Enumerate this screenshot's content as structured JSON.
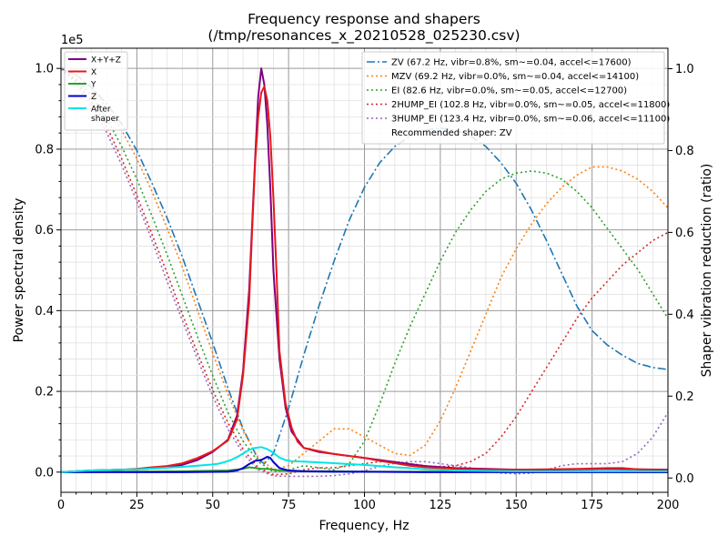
{
  "chart_data": {
    "type": "line",
    "title": "Frequency response and shapers",
    "subtitle": "(/tmp/resonances_x_20210528_025230.csv)",
    "xlabel": "Frequency, Hz",
    "ylabel": "Power spectral density",
    "y2label": "Shaper vibration reduction (ratio)",
    "y_exponent_label": "1e5",
    "xlim": [
      0,
      200
    ],
    "ylim": [
      -0.05,
      1.05
    ],
    "y2lim": [
      -0.035,
      1.05
    ],
    "xticks": [
      "0",
      "25",
      "50",
      "75",
      "100",
      "125",
      "150",
      "175",
      "200"
    ],
    "yticks": [
      "0.0",
      "0.2",
      "0.4",
      "0.6",
      "0.8",
      "1.0"
    ],
    "y2ticks": [
      "0.0",
      "0.2",
      "0.4",
      "0.6",
      "0.8",
      "1.0"
    ],
    "grid": true,
    "psd_legend_position": "top-left",
    "shaper_legend_position": "top-right",
    "recommended_text": "Recommended shaper: ZV",
    "psd_series": [
      {
        "name": "X+Y+Z",
        "color": "#800080",
        "x": [
          0,
          5,
          10,
          15,
          20,
          25,
          30,
          35,
          40,
          45,
          50,
          55,
          58,
          60,
          62,
          64,
          65,
          66,
          67,
          68,
          69,
          70,
          72,
          74,
          76,
          80,
          85,
          90,
          95,
          100,
          105,
          110,
          115,
          120,
          130,
          140,
          150,
          160,
          170,
          180,
          190,
          200
        ],
        "y": [
          0,
          0.002,
          0.004,
          0.005,
          0.006,
          0.007,
          0.009,
          0.012,
          0.018,
          0.03,
          0.05,
          0.08,
          0.14,
          0.25,
          0.45,
          0.78,
          0.93,
          1.0,
          0.96,
          0.86,
          0.7,
          0.5,
          0.28,
          0.16,
          0.1,
          0.06,
          0.05,
          0.045,
          0.04,
          0.035,
          0.03,
          0.025,
          0.02,
          0.015,
          0.01,
          0.008,
          0.006,
          0.006,
          0.007,
          0.008,
          0.007,
          0.006
        ]
      },
      {
        "name": "X",
        "color": "#e41a1c",
        "x": [
          0,
          5,
          10,
          15,
          20,
          25,
          30,
          35,
          40,
          45,
          50,
          55,
          58,
          60,
          62,
          63,
          64,
          65,
          66,
          67,
          68,
          69,
          70,
          71,
          72,
          74,
          76,
          78,
          80,
          85,
          90,
          95,
          100,
          105,
          110,
          115,
          120,
          130,
          140,
          150,
          160,
          170,
          180,
          185,
          190,
          195,
          200
        ],
        "y": [
          0,
          0.002,
          0.004,
          0.005,
          0.006,
          0.008,
          0.012,
          0.015,
          0.022,
          0.035,
          0.052,
          0.078,
          0.13,
          0.24,
          0.42,
          0.6,
          0.77,
          0.88,
          0.94,
          0.955,
          0.92,
          0.83,
          0.68,
          0.5,
          0.3,
          0.17,
          0.11,
          0.075,
          0.06,
          0.052,
          0.045,
          0.04,
          0.035,
          0.028,
          0.022,
          0.016,
          0.012,
          0.008,
          0.006,
          0.006,
          0.007,
          0.008,
          0.01,
          0.01,
          0.007,
          0.006,
          0.005
        ]
      },
      {
        "name": "Y",
        "color": "#2ca02c",
        "x": [
          0,
          20,
          40,
          55,
          60,
          62,
          64,
          66,
          68,
          70,
          72,
          75,
          80,
          85,
          90,
          100,
          120,
          150,
          200
        ],
        "y": [
          0,
          0.001,
          0.002,
          0.004,
          0.008,
          0.012,
          0.01,
          0.008,
          0.008,
          0.006,
          0.004,
          0.003,
          0.002,
          0.002,
          0.002,
          0.001,
          0.001,
          0.001,
          0
        ]
      },
      {
        "name": "Z",
        "color": "#0000cd",
        "x": [
          0,
          20,
          40,
          55,
          58,
          60,
          62,
          64,
          66,
          68,
          69,
          70,
          72,
          75,
          80,
          90,
          100,
          120,
          150,
          200
        ],
        "y": [
          0,
          0,
          0,
          0.001,
          0.004,
          0.01,
          0.02,
          0.028,
          0.03,
          0.038,
          0.035,
          0.025,
          0.01,
          0.004,
          0.002,
          0.001,
          0.001,
          0,
          0,
          0
        ]
      },
      {
        "name": "After\nshaper",
        "color": "#00e5e5",
        "x": [
          0,
          5,
          10,
          15,
          20,
          25,
          30,
          35,
          40,
          45,
          50,
          52,
          54,
          56,
          58,
          60,
          62,
          64,
          66,
          68,
          70,
          72,
          74,
          76,
          80,
          85,
          90,
          95,
          100,
          110,
          115,
          120,
          130,
          140,
          150,
          160,
          170,
          180,
          190,
          200
        ],
        "y": [
          0,
          0.002,
          0.004,
          0.005,
          0.006,
          0.007,
          0.009,
          0.011,
          0.013,
          0.016,
          0.019,
          0.021,
          0.025,
          0.03,
          0.037,
          0.046,
          0.055,
          0.06,
          0.062,
          0.057,
          0.048,
          0.036,
          0.03,
          0.027,
          0.026,
          0.024,
          0.022,
          0.02,
          0.018,
          0.012,
          0.01,
          0.007,
          0.004,
          0.003,
          0.002,
          0.002,
          0.002,
          0.002,
          0.002,
          0.002
        ]
      }
    ],
    "shaper_series": [
      {
        "name": "ZV (67.2 Hz, vibr=0.8%, sm~=0.04, accel<=17600)",
        "color": "#1f77b4",
        "dash": "dashdot",
        "x": [
          0,
          5,
          10,
          15,
          20,
          25,
          30,
          35,
          40,
          45,
          50,
          55,
          60,
          65,
          67,
          70,
          75,
          80,
          85,
          90,
          95,
          100,
          105,
          110,
          115,
          120,
          125,
          130,
          135,
          140,
          145,
          150,
          155,
          160,
          165,
          170,
          175,
          180,
          185,
          190,
          195,
          200
        ],
        "y": [
          1.0,
          0.985,
          0.955,
          0.915,
          0.865,
          0.8,
          0.72,
          0.635,
          0.54,
          0.435,
          0.33,
          0.22,
          0.12,
          0.045,
          0.035,
          0.06,
          0.17,
          0.3,
          0.42,
          0.53,
          0.63,
          0.71,
          0.77,
          0.81,
          0.835,
          0.85,
          0.855,
          0.85,
          0.835,
          0.81,
          0.77,
          0.72,
          0.655,
          0.58,
          0.5,
          0.42,
          0.36,
          0.325,
          0.3,
          0.28,
          0.27,
          0.265
        ]
      },
      {
        "name": "MZV (69.2 Hz, vibr=0.0%, sm~=0.04, accel<=14100)",
        "color": "#ff7f0e",
        "dash": "dotted",
        "x": [
          0,
          5,
          10,
          15,
          20,
          25,
          30,
          35,
          40,
          45,
          50,
          55,
          60,
          65,
          70,
          75,
          80,
          85,
          90,
          95,
          100,
          105,
          110,
          115,
          120,
          125,
          130,
          135,
          140,
          145,
          150,
          155,
          160,
          165,
          170,
          175,
          180,
          185,
          190,
          195,
          200
        ],
        "y": [
          1.0,
          0.985,
          0.95,
          0.905,
          0.85,
          0.78,
          0.7,
          0.61,
          0.515,
          0.41,
          0.305,
          0.205,
          0.115,
          0.05,
          0.02,
          0.03,
          0.06,
          0.09,
          0.12,
          0.12,
          0.1,
          0.08,
          0.06,
          0.055,
          0.08,
          0.14,
          0.22,
          0.31,
          0.4,
          0.49,
          0.56,
          0.62,
          0.67,
          0.71,
          0.74,
          0.76,
          0.76,
          0.75,
          0.73,
          0.7,
          0.66
        ]
      },
      {
        "name": "EI (82.6 Hz, vibr=0.0%, sm~=0.05, accel<=12700)",
        "color": "#2ca02c",
        "dash": "dotted",
        "x": [
          0,
          5,
          10,
          15,
          20,
          25,
          30,
          35,
          40,
          45,
          50,
          55,
          60,
          65,
          70,
          75,
          80,
          85,
          90,
          95,
          100,
          105,
          110,
          115,
          120,
          125,
          130,
          135,
          140,
          145,
          150,
          155,
          160,
          165,
          170,
          175,
          180,
          185,
          190,
          195,
          200
        ],
        "y": [
          1.0,
          0.975,
          0.935,
          0.88,
          0.81,
          0.73,
          0.64,
          0.545,
          0.445,
          0.345,
          0.25,
          0.16,
          0.09,
          0.04,
          0.015,
          0.02,
          0.03,
          0.025,
          0.02,
          0.035,
          0.09,
          0.18,
          0.28,
          0.37,
          0.45,
          0.53,
          0.6,
          0.655,
          0.7,
          0.73,
          0.745,
          0.75,
          0.745,
          0.73,
          0.7,
          0.66,
          0.61,
          0.56,
          0.51,
          0.45,
          0.39
        ]
      },
      {
        "name": "2HUMP_EI (102.8 Hz, vibr=0.0%, sm~=0.05, accel<=11800)",
        "color": "#d62728",
        "dash": "dotted",
        "x": [
          0,
          5,
          10,
          15,
          20,
          25,
          30,
          35,
          40,
          45,
          50,
          55,
          60,
          65,
          70,
          75,
          80,
          85,
          90,
          95,
          100,
          105,
          110,
          115,
          120,
          125,
          130,
          135,
          140,
          145,
          150,
          155,
          160,
          165,
          170,
          175,
          180,
          185,
          190,
          195,
          200
        ],
        "y": [
          1.0,
          0.97,
          0.92,
          0.86,
          0.78,
          0.69,
          0.595,
          0.5,
          0.4,
          0.305,
          0.215,
          0.135,
          0.07,
          0.025,
          0.008,
          0.01,
          0.02,
          0.025,
          0.025,
          0.03,
          0.035,
          0.04,
          0.04,
          0.035,
          0.03,
          0.027,
          0.03,
          0.04,
          0.06,
          0.1,
          0.15,
          0.21,
          0.27,
          0.33,
          0.39,
          0.44,
          0.48,
          0.52,
          0.55,
          0.58,
          0.6
        ]
      },
      {
        "name": "3HUMP_EI (123.4 Hz, vibr=0.0%, sm~=0.06, accel<=11100)",
        "color": "#9467bd",
        "dash": "dotted",
        "x": [
          0,
          5,
          10,
          15,
          20,
          25,
          30,
          35,
          40,
          45,
          50,
          55,
          60,
          65,
          70,
          75,
          80,
          85,
          90,
          95,
          100,
          105,
          110,
          115,
          120,
          125,
          130,
          135,
          140,
          145,
          150,
          155,
          160,
          165,
          170,
          175,
          180,
          185,
          190,
          195,
          200
        ],
        "y": [
          1.0,
          0.965,
          0.91,
          0.845,
          0.765,
          0.675,
          0.58,
          0.48,
          0.385,
          0.29,
          0.2,
          0.12,
          0.06,
          0.02,
          0.005,
          0.004,
          0.004,
          0.004,
          0.006,
          0.01,
          0.018,
          0.028,
          0.036,
          0.04,
          0.04,
          0.035,
          0.03,
          0.025,
          0.018,
          0.012,
          0.01,
          0.012,
          0.02,
          0.03,
          0.035,
          0.035,
          0.035,
          0.04,
          0.06,
          0.1,
          0.16
        ]
      }
    ]
  }
}
